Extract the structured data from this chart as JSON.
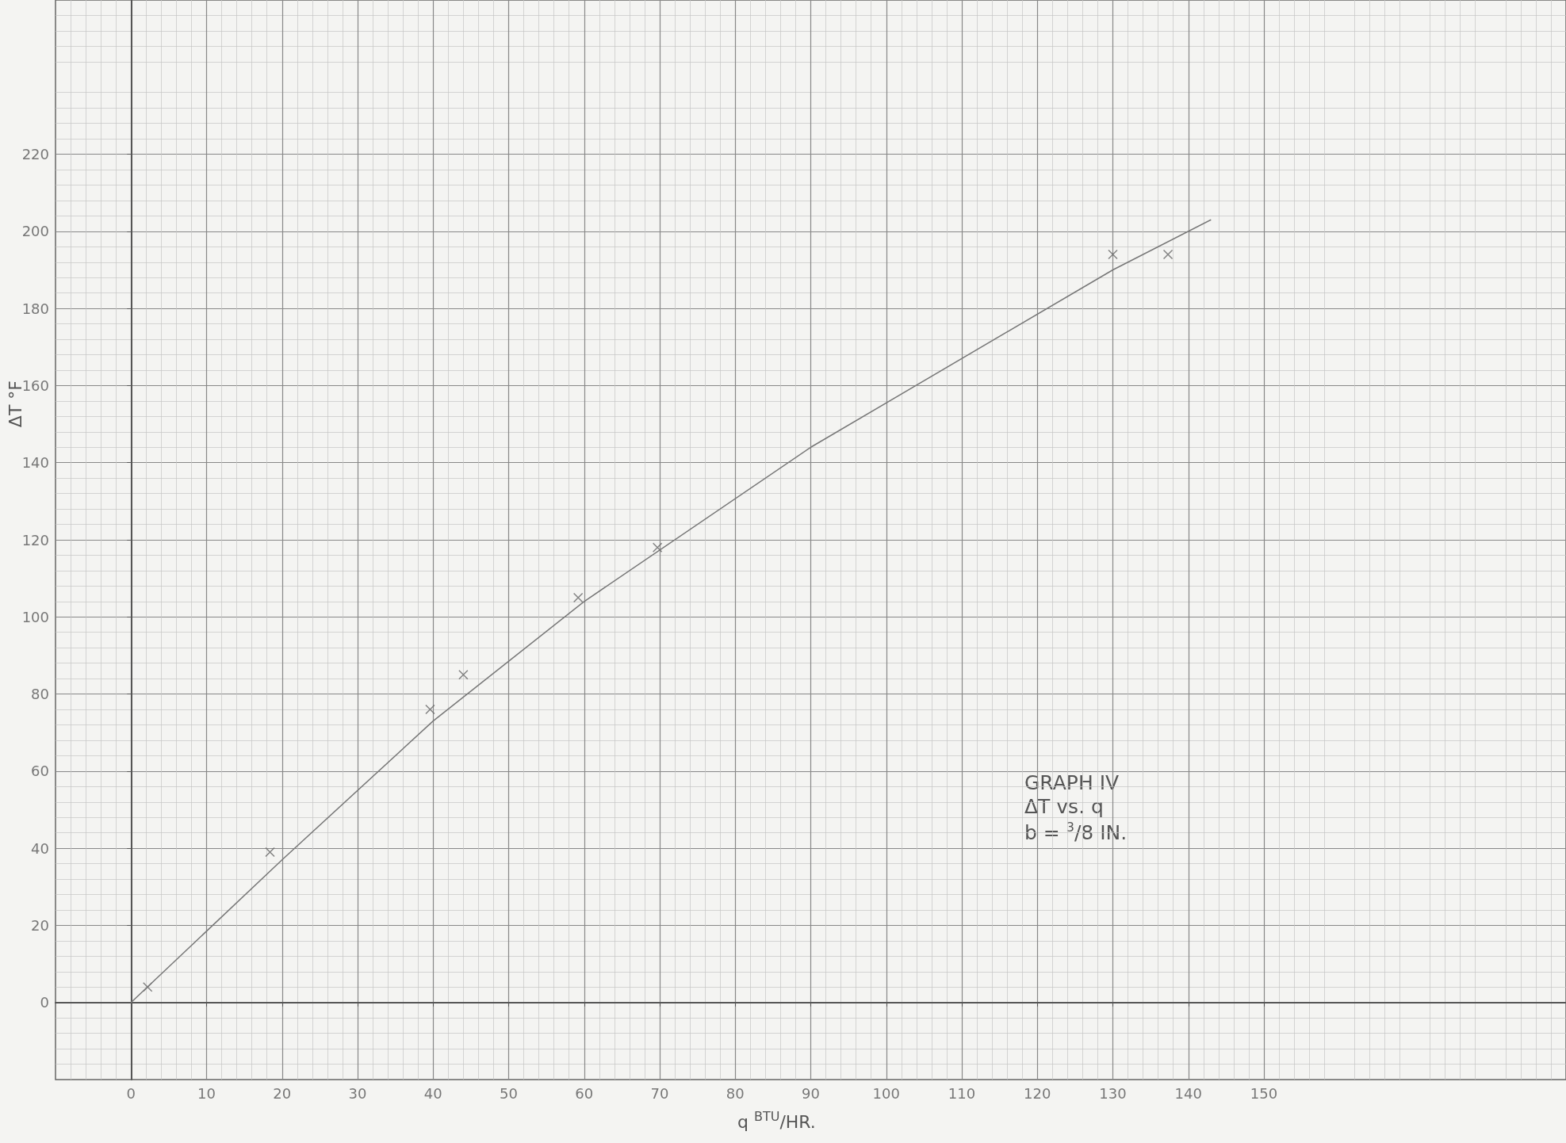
{
  "chart_data": {
    "type": "scatter",
    "xlabel": "q $^{BTU}$/HR.",
    "ylabel": "ΔT °F",
    "annotations": [
      "GRAPH IV",
      "ΔT vs. q",
      "b = $^{3}$/8 IN."
    ],
    "series": [
      {
        "color": "#666666",
        "marker": "cross",
        "x": [
          2.2,
          18.4,
          39.6,
          44,
          59.2,
          69.7,
          130,
          137.3
        ],
        "values": [
          4,
          39,
          76,
          85,
          105,
          118,
          194,
          194
        ]
      },
      {
        "type": "line",
        "color": "#777777",
        "marker": "none",
        "line_style": "solid",
        "x": [
          0,
          20,
          40,
          60,
          90,
          130,
          143
        ],
        "values": [
          0,
          37,
          73,
          104,
          144,
          190,
          203
        ]
      }
    ],
    "xlim": [
      -10,
      190
    ],
    "ylim": [
      -20,
      260
    ],
    "xticks": [
      0,
      10,
      20,
      30,
      40,
      50,
      60,
      70,
      80,
      90,
      100,
      110,
      120,
      130,
      140,
      150
    ],
    "yticks": [
      0,
      20,
      40,
      60,
      80,
      100,
      120,
      140,
      160,
      180,
      200,
      220
    ],
    "grid": true
  }
}
